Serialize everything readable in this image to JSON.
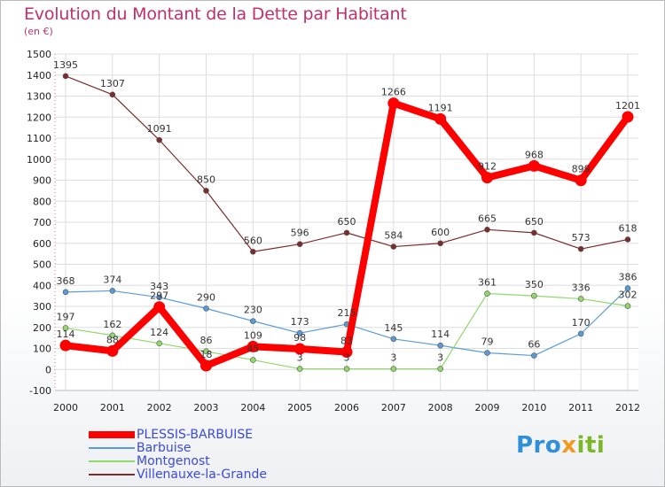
{
  "title": "Evolution du Montant de la Dette par Habitant",
  "subtitle": "(en €)",
  "logo": {
    "part1": "Pro",
    "part2": "x",
    "part3": "iti"
  },
  "chart_data": {
    "type": "line",
    "title": "Evolution du Montant de la Dette par Habitant",
    "unit": "(en €)",
    "x": [
      "2000",
      "2001",
      "2002",
      "2003",
      "2004",
      "2005",
      "2006",
      "2007",
      "2008",
      "2009",
      "2010",
      "2011",
      "2012"
    ],
    "ylim": [
      -100,
      1500
    ],
    "yticks": [
      -100,
      0,
      100,
      200,
      300,
      400,
      500,
      600,
      700,
      800,
      900,
      1000,
      1100,
      1200,
      1300,
      1400,
      1500
    ],
    "grid": true,
    "legend_position": "bottom-left",
    "series": [
      {
        "name": "PLESSIS-BARBUISE",
        "color": "#ff0000",
        "width": 8,
        "values": [
          114,
          88,
          297,
          18,
          109,
          98,
          83,
          1266,
          1191,
          912,
          968,
          899,
          1201
        ],
        "labels": [
          "114",
          "88",
          "297",
          "18",
          "109",
          "98",
          "83",
          "1266",
          "1191",
          "912",
          "968",
          "899",
          "1201"
        ]
      },
      {
        "name": "Barbuise",
        "color": "#5b9bd5",
        "width": 1.2,
        "values": [
          368,
          374,
          343,
          290,
          230,
          173,
          215,
          145,
          114,
          79,
          66,
          170,
          386
        ],
        "labels": [
          "368",
          "374",
          "343",
          "290",
          "230",
          "173",
          "215",
          "145",
          "114",
          "79",
          "66",
          "170",
          "386"
        ]
      },
      {
        "name": "Montgenost",
        "color": "#90d86a",
        "width": 1.2,
        "values": [
          197,
          162,
          124,
          86,
          45,
          3,
          3,
          3,
          3,
          361,
          350,
          336,
          302
        ],
        "labels": [
          "197",
          "162",
          "124",
          "86",
          "45",
          "3",
          "3",
          "3",
          "3",
          "361",
          "350",
          "336",
          "302"
        ]
      },
      {
        "name": "Villenauxe-la-Grande",
        "color": "#7b2c2c",
        "width": 1.2,
        "values": [
          1395,
          1307,
          1091,
          850,
          560,
          596,
          650,
          584,
          600,
          665,
          650,
          573,
          618
        ],
        "labels": [
          "1395",
          "1307",
          "1091",
          "850",
          "560",
          "596",
          "650",
          "584",
          "600",
          "665",
          "650",
          "573",
          "618"
        ]
      }
    ]
  }
}
